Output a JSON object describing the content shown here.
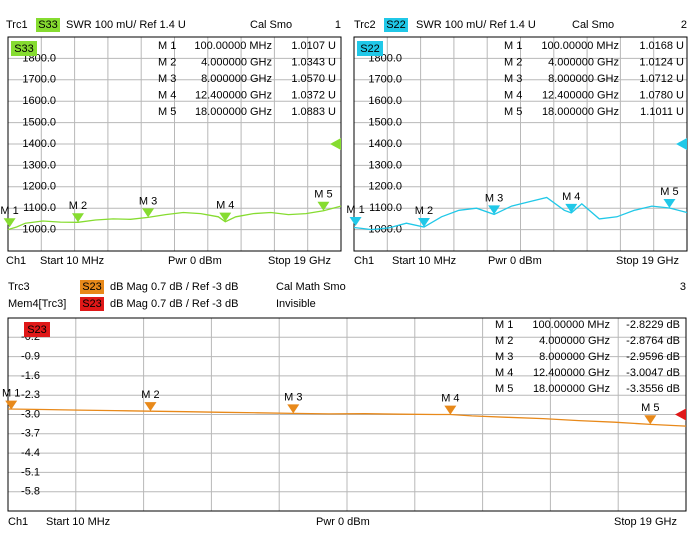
{
  "chart_data": [
    {
      "type": "line",
      "trace": "Trc1",
      "badge": "S33",
      "format": "SWR 100 mU/ Ref 1.4 U",
      "cal": "Cal Smo",
      "number": "1",
      "plot_badge": "S33",
      "color": "#86dc30",
      "xlim": [
        0.01,
        19
      ],
      "ylim": [
        900,
        1900
      ],
      "yticks": [
        {
          "value": 1800,
          "label": "1800.0"
        },
        {
          "value": 1700,
          "label": "1700.0"
        },
        {
          "value": 1600,
          "label": "1600.0"
        },
        {
          "value": 1500,
          "label": "1500.0"
        },
        {
          "value": 1400,
          "label": "1400.0"
        },
        {
          "value": 1300,
          "label": "1300.0"
        },
        {
          "value": 1200,
          "label": "1200.0"
        },
        {
          "value": 1100,
          "label": "1100.0"
        },
        {
          "value": 1000,
          "label": "1000.0"
        }
      ],
      "ref": 1400,
      "grid": true,
      "x": [
        0.01,
        0.5,
        1,
        2,
        3,
        4,
        5,
        6,
        7,
        8,
        9,
        10,
        11,
        12,
        12.4,
        13,
        14,
        15,
        16,
        17,
        18,
        19
      ],
      "values": [
        1000,
        1012,
        1030,
        1040,
        1035,
        1034,
        1045,
        1050,
        1048,
        1057,
        1070,
        1080,
        1075,
        1060,
        1037,
        1060,
        1075,
        1080,
        1070,
        1075,
        1088,
        1110
      ],
      "markers": [
        {
          "label": "M 1",
          "x": 0.1,
          "value": 1010.7,
          "stimulus_label": "100.00000 MHz",
          "value_label": "1.0107 U"
        },
        {
          "label": "M 2",
          "x": 4,
          "value": 1034.3,
          "stimulus_label": "4.000000 GHz",
          "value_label": "1.0343 U"
        },
        {
          "label": "M 3",
          "x": 8,
          "value": 1057,
          "stimulus_label": "8.000000 GHz",
          "value_label": "1.0570 U"
        },
        {
          "label": "M 4",
          "x": 12.4,
          "value": 1037.2,
          "stimulus_label": "12.400000 GHz",
          "value_label": "1.0372 U"
        },
        {
          "label": "M 5",
          "x": 18,
          "value": 1088.3,
          "stimulus_label": "18.000000 GHz",
          "value_label": "1.0883 U"
        }
      ],
      "footer": {
        "channel": "Ch1",
        "start": "Start 10 MHz",
        "power": "Pwr 0 dBm",
        "stop": "Stop 19 GHz"
      }
    },
    {
      "type": "line",
      "trace": "Trc2",
      "badge": "S22",
      "format": "SWR 100 mU/ Ref 1.4 U",
      "cal": "Cal Smo",
      "number": "2",
      "plot_badge": "S22",
      "color": "#20c8e8",
      "xlim": [
        0.01,
        19
      ],
      "ylim": [
        900,
        1900
      ],
      "yticks": [
        {
          "value": 1800,
          "label": "1800.0"
        },
        {
          "value": 1700,
          "label": "1700.0"
        },
        {
          "value": 1600,
          "label": "1600.0"
        },
        {
          "value": 1500,
          "label": "1500.0"
        },
        {
          "value": 1400,
          "label": "1400.0"
        },
        {
          "value": 1300,
          "label": "1300.0"
        },
        {
          "value": 1200,
          "label": "1200.0"
        },
        {
          "value": 1100,
          "label": "1100.0"
        },
        {
          "value": 1000,
          "label": "1000.0"
        }
      ],
      "ref": 1400,
      "grid": true,
      "x": [
        0.01,
        0.5,
        1,
        2,
        3,
        4,
        5,
        6,
        7,
        8,
        9,
        10,
        11,
        12,
        12.4,
        13,
        14,
        15,
        16,
        17,
        18,
        19
      ],
      "values": [
        1010,
        1005,
        1000,
        1008,
        1030,
        1012,
        1060,
        1090,
        1100,
        1071,
        1110,
        1130,
        1150,
        1090,
        1078,
        1120,
        1050,
        1060,
        1090,
        1110,
        1101,
        1080
      ],
      "markers": [
        {
          "label": "M 1",
          "x": 0.1,
          "value": 1016.8,
          "stimulus_label": "100.00000 MHz",
          "value_label": "1.0168 U"
        },
        {
          "label": "M 2",
          "x": 4,
          "value": 1012.4,
          "stimulus_label": "4.000000 GHz",
          "value_label": "1.0124 U"
        },
        {
          "label": "M 3",
          "x": 8,
          "value": 1071.2,
          "stimulus_label": "8.000000 GHz",
          "value_label": "1.0712 U"
        },
        {
          "label": "M 4",
          "x": 12.4,
          "value": 1078,
          "stimulus_label": "12.400000 GHz",
          "value_label": "1.0780 U"
        },
        {
          "label": "M 5",
          "x": 18,
          "value": 1101.1,
          "stimulus_label": "18.000000 GHz",
          "value_label": "1.1011 U"
        }
      ],
      "footer": {
        "channel": "Ch1",
        "start": "Start 10 MHz",
        "power": "Pwr 0 dBm",
        "stop": "Stop 19 GHz"
      }
    },
    {
      "type": "line",
      "trace": "Trc3",
      "badge": "S23",
      "format": "dB Mag 0.7 dB / Ref -3 dB",
      "cal": "Cal Math Smo",
      "number": "3",
      "plot_badge": "S23",
      "color": "#e8891a",
      "memory": {
        "trace": "Mem4[Trc3]",
        "badge": "S23",
        "format": "dB Mag 0.7 dB / Ref -3 dB",
        "state": "Invisible",
        "color": "#e01818"
      },
      "xlim": [
        0.01,
        19
      ],
      "ylim": [
        -6.5,
        0.5
      ],
      "yticks": [
        -0.2,
        -0.9,
        -1.6,
        -2.3,
        {
          "value": -3,
          "label": "-3.0"
        },
        -3.7,
        -4.4,
        -5.1,
        -5.8
      ],
      "ref": -3,
      "grid": true,
      "x": [
        0.01,
        1,
        2,
        3,
        4,
        5,
        6,
        7,
        8,
        9,
        10,
        11,
        12,
        12.4,
        13,
        14,
        15,
        16,
        17,
        18,
        19
      ],
      "values": [
        -2.8,
        -2.82,
        -2.84,
        -2.86,
        -2.88,
        -2.9,
        -2.92,
        -2.94,
        -2.96,
        -2.98,
        -2.97,
        -2.99,
        -3.0,
        -3.0,
        -3.05,
        -3.1,
        -3.15,
        -3.22,
        -3.28,
        -3.36,
        -3.42
      ],
      "markers": [
        {
          "label": "M 1",
          "x": 0.1,
          "value": -2.8229,
          "stimulus_label": "100.00000 MHz",
          "value_label": "-2.8229 dB"
        },
        {
          "label": "M 2",
          "x": 4,
          "value": -2.8764,
          "stimulus_label": "4.000000 GHz",
          "value_label": "-2.8764 dB"
        },
        {
          "label": "M 3",
          "x": 8,
          "value": -2.9596,
          "stimulus_label": "8.000000 GHz",
          "value_label": "-2.9596 dB"
        },
        {
          "label": "M 4",
          "x": 12.4,
          "value": -3.0047,
          "stimulus_label": "12.400000 GHz",
          "value_label": "-3.0047 dB"
        },
        {
          "label": "M 5",
          "x": 18,
          "value": -3.3556,
          "stimulus_label": "18.000000 GHz",
          "value_label": "-3.3556 dB"
        }
      ],
      "footer": {
        "channel": "Ch1",
        "start": "Start 10 MHz",
        "power": "Pwr 0 dBm",
        "stop": "Stop 19 GHz"
      }
    }
  ]
}
